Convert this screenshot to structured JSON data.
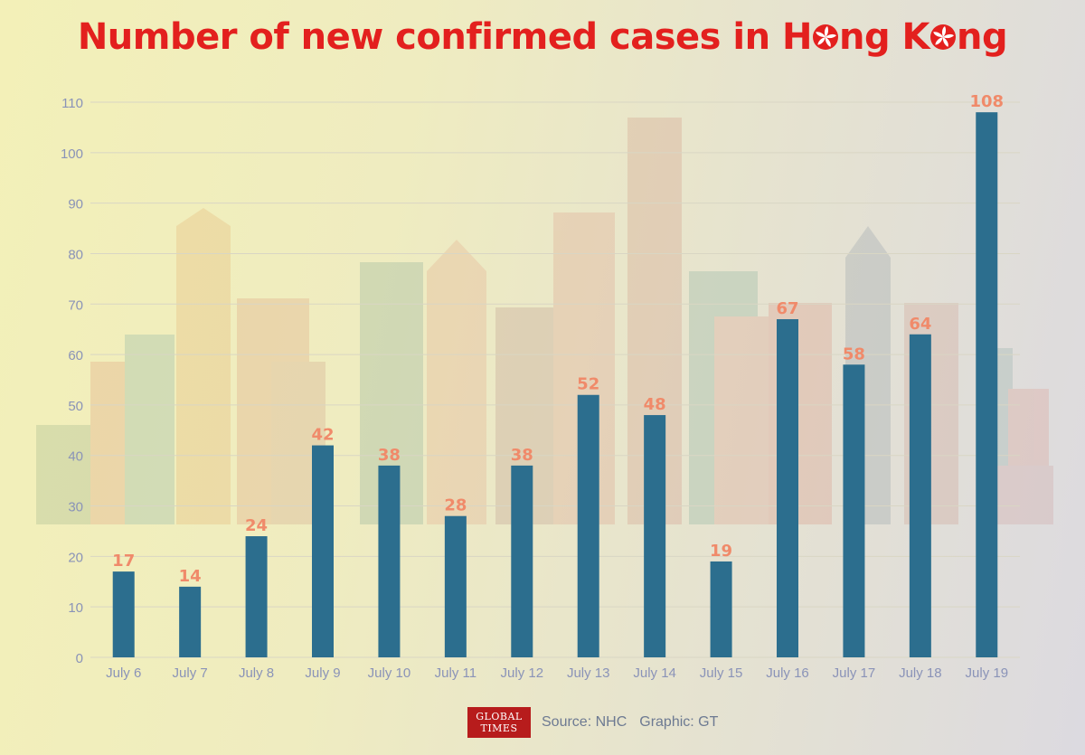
{
  "title": {
    "before": "Number of new confirmed cases in H",
    "middle": "ng K",
    "after": "ng"
  },
  "footer": {
    "logo_line1": "GLOBAL",
    "logo_line2": "TIMES",
    "source": "Source: NHC",
    "graphic": "Graphic: GT"
  },
  "colors": {
    "bar": "#2c6e8e",
    "label": "#f08a6a",
    "title": "#e3201e",
    "axis_text": "#8a93b8",
    "grid": "#d9d6c4"
  },
  "chart_data": {
    "type": "bar",
    "title": "Number of new confirmed cases in Hong Kong",
    "categories": [
      "July 6",
      "July 7",
      "July 8",
      "July 9",
      "July 10",
      "July 11",
      "July 12",
      "July 13",
      "July 14",
      "July 15",
      "July 16",
      "July 17",
      "July 18",
      "July 19"
    ],
    "values": [
      17,
      14,
      24,
      42,
      38,
      28,
      38,
      52,
      48,
      19,
      67,
      58,
      64,
      108
    ],
    "yticks": [
      0,
      10,
      20,
      30,
      40,
      50,
      60,
      70,
      80,
      90,
      100,
      110
    ],
    "ylim": [
      0,
      110
    ],
    "grid": true,
    "legend": "none"
  }
}
